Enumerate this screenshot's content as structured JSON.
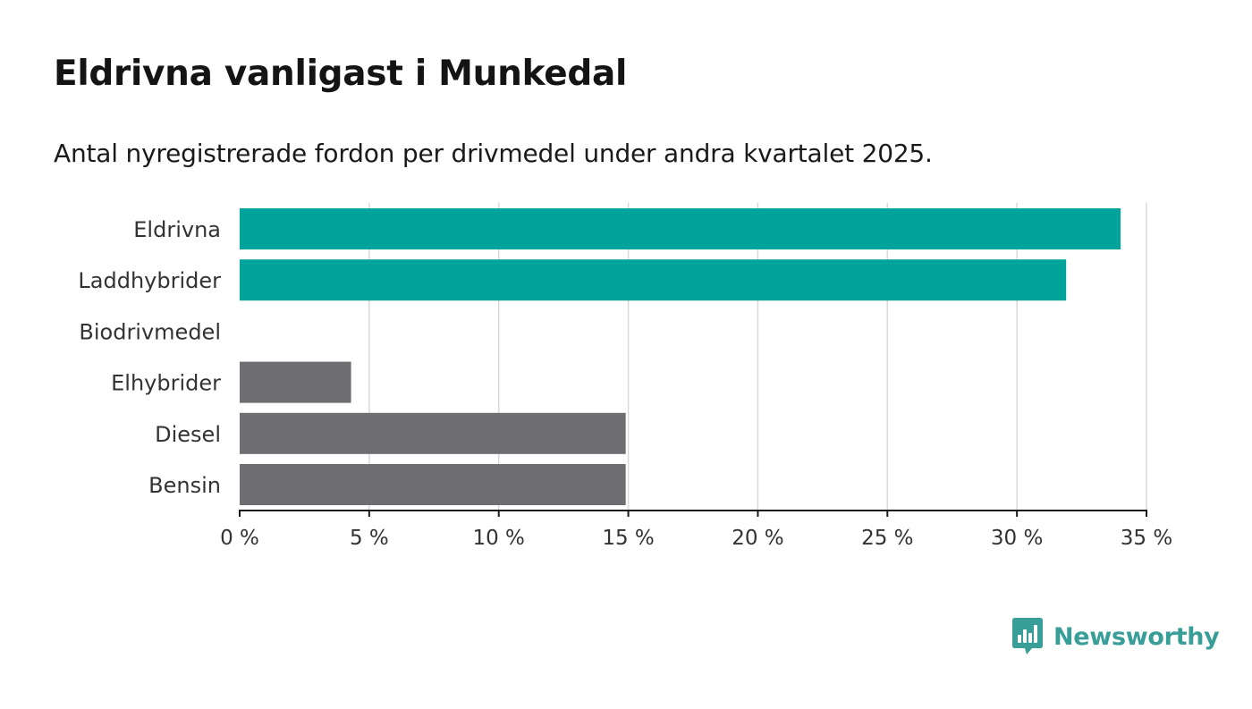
{
  "header": {
    "title": "Eldrivna vanligast i Munkedal",
    "subtitle": "Antal nyregistrerade fordon per drivmedel under andra kvartalet 2025."
  },
  "chart_data": {
    "type": "bar",
    "orientation": "horizontal",
    "categories": [
      "Eldrivna",
      "Laddhybrider",
      "Biodrivmedel",
      "Elhybrider",
      "Diesel",
      "Bensin"
    ],
    "values": [
      34.0,
      31.9,
      0,
      4.3,
      14.9,
      14.9
    ],
    "bar_colors": [
      "#00a49a",
      "#00a49a",
      "#6e6d72",
      "#6e6d72",
      "#6e6d72",
      "#6e6d72"
    ],
    "xlim": [
      0,
      35
    ],
    "xticks": [
      0,
      5,
      10,
      15,
      20,
      25,
      30,
      35
    ],
    "xtick_labels": [
      "0 %",
      "5 %",
      "10 %",
      "15 %",
      "20 %",
      "25 %",
      "30 %",
      "35 %"
    ],
    "grid": "vertical",
    "xlabel": "",
    "ylabel": ""
  },
  "branding": {
    "name": "Newsworthy",
    "logo_icon": "newsworthy-chart-bubble-icon",
    "color": "#3a9e98"
  }
}
